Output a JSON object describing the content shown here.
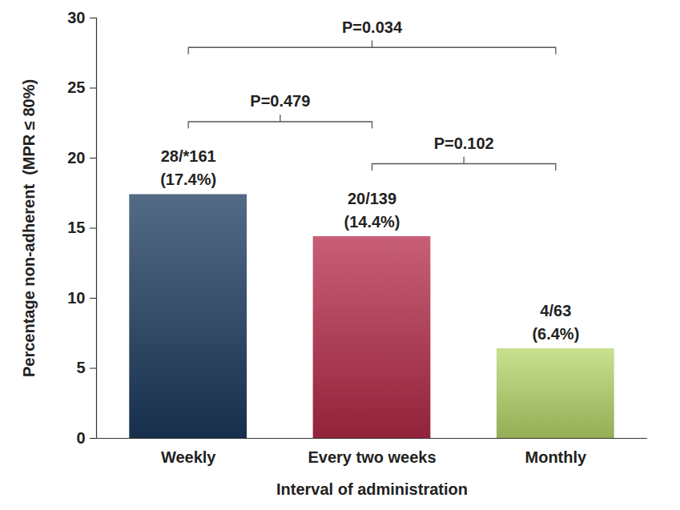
{
  "chart_data": {
    "type": "bar",
    "categories": [
      "Weekly",
      "Every two weeks",
      "Monthly"
    ],
    "values": [
      17.4,
      14.4,
      6.4
    ],
    "value_labels": [
      "28/*161\n(17.4%)",
      "20/139\n(14.4%)",
      "4/63\n(6.4%)"
    ],
    "colors": [
      "#1b3a5e",
      "#b52a48",
      "#b6d76a"
    ],
    "data_labels": true,
    "xlabel": "Interval of administration",
    "ylabel": "Percentage non-adherent  (MPR ≤ 80%)",
    "ylim": [
      0,
      30
    ],
    "yticks": [
      0,
      5,
      10,
      15,
      20,
      25,
      30
    ],
    "annotations": [
      {
        "from": "Weekly",
        "to": "Every two weeks",
        "text": "P=0.479"
      },
      {
        "from": "Every two weeks",
        "to": "Monthly",
        "text": "P=0.102"
      },
      {
        "from": "Weekly",
        "to": "Monthly",
        "text": "P=0.034"
      }
    ]
  }
}
